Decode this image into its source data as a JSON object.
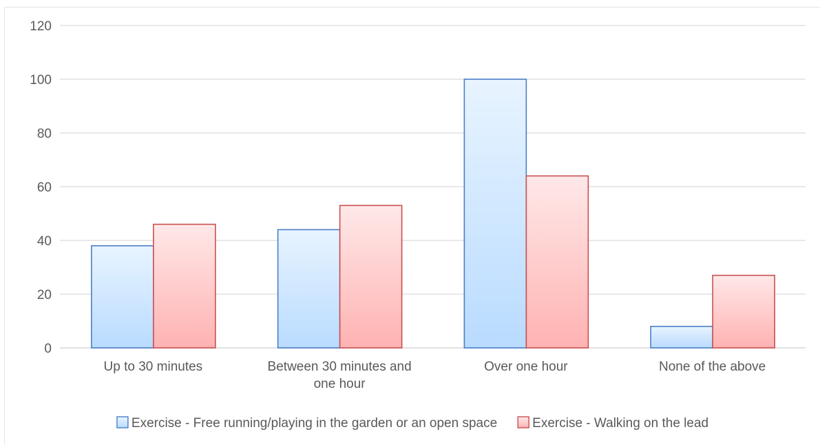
{
  "chart_data": {
    "type": "bar",
    "title": "",
    "xlabel": "",
    "ylabel": "",
    "ylim": [
      0,
      120
    ],
    "yticks": [
      0,
      20,
      40,
      60,
      80,
      100,
      120
    ],
    "grid": true,
    "legend_position": "bottom",
    "categories": [
      [
        "Up to 30 minutes"
      ],
      [
        "Between 30 minutes and",
        "one hour"
      ],
      [
        "Over one hour"
      ],
      [
        "None of the above"
      ]
    ],
    "series": [
      {
        "name": "Exercise - Free running/playing in the garden or an open space",
        "values": [
          38,
          44,
          100,
          8
        ],
        "fill_top": "#e8f4ff",
        "fill_bottom": "#b9dbff",
        "stroke": "#4a7ec6"
      },
      {
        "name": "Exercise - Walking on the lead",
        "values": [
          46,
          53,
          64,
          27
        ],
        "fill_top": "#ffe8e8",
        "fill_bottom": "#ffb2b2",
        "stroke": "#c85050"
      }
    ],
    "colors": {
      "grid": "#d9d9d9",
      "text": "#595959"
    }
  }
}
